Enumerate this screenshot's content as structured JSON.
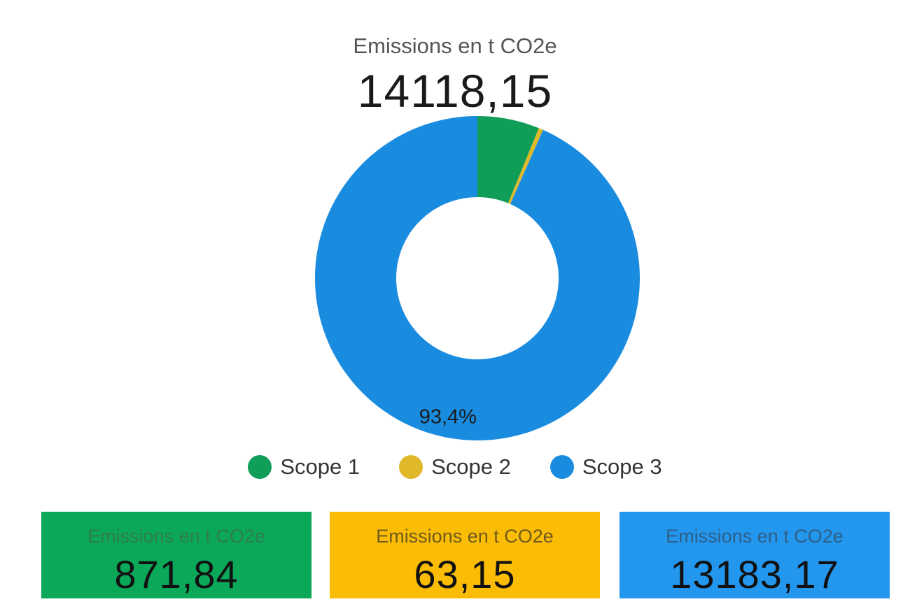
{
  "header": {
    "label": "Emissions en t CO2e",
    "total": "14118,15"
  },
  "chart_data": {
    "type": "donut",
    "total": 14118.15,
    "series": [
      {
        "name": "Scope 1",
        "value": 871.84,
        "color": "#0f9d58"
      },
      {
        "name": "Scope 2",
        "value": 63.15,
        "color": "#e0b92b"
      },
      {
        "name": "Scope 3",
        "value": 13183.17,
        "color": "#1a8ce0"
      }
    ],
    "data_labels": [
      {
        "series": "Scope 3",
        "text": "93,4%"
      }
    ],
    "legend_position": "bottom"
  },
  "legend": [
    {
      "label": "Scope 1",
      "color": "#0f9d58"
    },
    {
      "label": "Scope 2",
      "color": "#e0b92b"
    },
    {
      "label": "Scope 3",
      "color": "#1a8ce0"
    }
  ],
  "cards": [
    {
      "label": "Emissions en t CO2e",
      "value": "871,84",
      "bg": "#0ba85a",
      "label_color": "#2f7d4f"
    },
    {
      "label": "Emissions en t CO2e",
      "value": "63,15",
      "bg": "#fbbc05",
      "label_color": "#6e5a1e"
    },
    {
      "label": "Emissions en t CO2e",
      "value": "13183,17",
      "bg": "#2396ee",
      "label_color": "#2e5f86"
    }
  ]
}
